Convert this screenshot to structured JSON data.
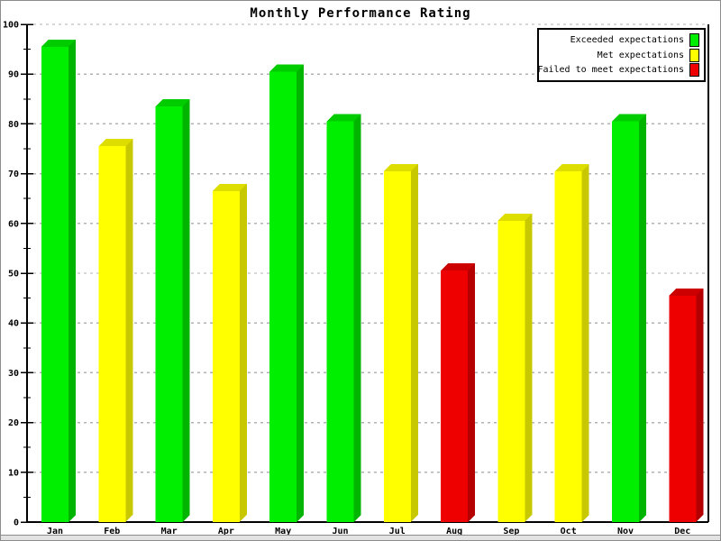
{
  "chart_data": {
    "type": "bar",
    "title": "Monthly Performance Rating",
    "categories": [
      "Jan",
      "Feb",
      "Mar",
      "Apr",
      "May",
      "Jun",
      "Jul",
      "Aug",
      "Sep",
      "Oct",
      "Nov",
      "Dec"
    ],
    "values": [
      95.5,
      75.5,
      83.5,
      66.5,
      90.5,
      80.5,
      70.5,
      50.5,
      60.5,
      70.5,
      80.5,
      45.5
    ],
    "statuses": [
      "exceeded",
      "met",
      "exceeded",
      "met",
      "exceeded",
      "exceeded",
      "met",
      "failed",
      "met",
      "met",
      "exceeded",
      "failed"
    ],
    "xlabel": "",
    "ylabel": "",
    "ylim": [
      0,
      100
    ],
    "yticks": [
      0,
      10,
      20,
      30,
      40,
      50,
      60,
      70,
      80,
      90,
      100
    ],
    "ytick_minor_step": 5,
    "grid": "horizontal-dotted",
    "style": "3d-columns",
    "legend_position": "top-right",
    "legend": [
      {
        "label": "Exceeded expectations",
        "status": "exceeded",
        "color": "#00EE00"
      },
      {
        "label": "Met expectations",
        "status": "met",
        "color": "#FFFF00"
      },
      {
        "label": "Failed to meet expectations",
        "status": "failed",
        "color": "#EE0000"
      }
    ],
    "colors": {
      "exceeded": {
        "front": "#00EE00",
        "top": "#00CC00",
        "side": "#00B400"
      },
      "met": {
        "front": "#FFFF00",
        "top": "#DDDD00",
        "side": "#C8C800"
      },
      "failed": {
        "front": "#EE0000",
        "top": "#CC0000",
        "side": "#B40000"
      }
    },
    "grid_color": "#b2b2b2",
    "axis_color": "#000000",
    "background": "#ffffff",
    "frame_border_color": "#8c8c8c"
  }
}
